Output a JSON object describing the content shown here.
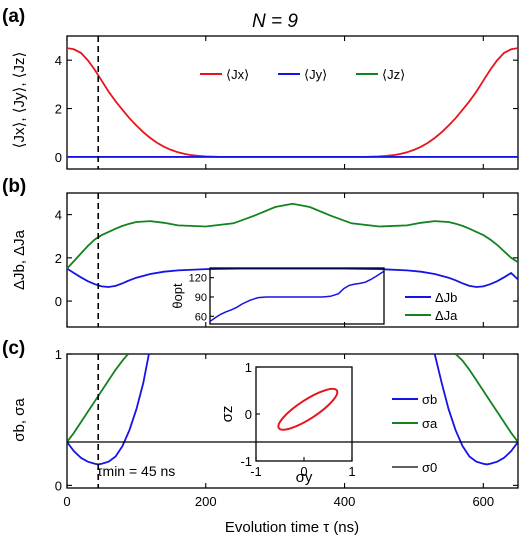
{
  "title": "N = 9",
  "colors": {
    "red": "#e8141b",
    "blue": "#1414e6",
    "green": "#14821e",
    "black": "#000000"
  },
  "chart_data": [
    {
      "panel": "(a)",
      "type": "line",
      "xlim": [
        0,
        650
      ],
      "ylim": [
        -0.5,
        5
      ],
      "yticks": [
        "0",
        "2",
        "4"
      ],
      "ylabel": "⟨Jx⟩, ⟨Jy⟩, ⟨Jz⟩",
      "vline_x": 45,
      "legend": [
        "⟨Jx⟩",
        "⟨Jy⟩",
        "⟨Jz⟩"
      ],
      "series": [
        {
          "name": "⟨Jx⟩",
          "color": "red",
          "x": [
            0,
            10,
            20,
            30,
            40,
            50,
            60,
            70,
            80,
            90,
            100,
            110,
            120,
            130,
            140,
            150,
            160,
            170,
            180,
            190,
            200,
            210,
            220,
            430,
            440,
            450,
            460,
            470,
            480,
            490,
            500,
            510,
            520,
            530,
            540,
            550,
            560,
            570,
            580,
            590,
            600,
            610,
            620,
            630,
            640,
            650
          ],
          "y": [
            4.5,
            4.45,
            4.3,
            4.0,
            3.6,
            3.15,
            2.7,
            2.3,
            1.95,
            1.6,
            1.3,
            1.02,
            0.78,
            0.58,
            0.42,
            0.29,
            0.19,
            0.12,
            0.07,
            0.04,
            0.02,
            0.01,
            0,
            0,
            0.01,
            0.02,
            0.04,
            0.07,
            0.12,
            0.19,
            0.29,
            0.42,
            0.58,
            0.78,
            1.02,
            1.3,
            1.6,
            1.95,
            2.3,
            2.7,
            3.15,
            3.6,
            4.0,
            4.3,
            4.45,
            4.5
          ]
        },
        {
          "name": "⟨Jy⟩",
          "color": "blue",
          "x": [
            0,
            650
          ],
          "y": [
            0,
            0
          ]
        },
        {
          "name": "⟨Jz⟩",
          "color": "green",
          "x": [
            0,
            650
          ],
          "y": [
            0,
            0
          ]
        }
      ]
    },
    {
      "panel": "(b)",
      "type": "line",
      "xlim": [
        0,
        650
      ],
      "ylim": [
        -1.2,
        5
      ],
      "yticks": [
        "0",
        "2",
        "4"
      ],
      "ylabel": "ΔJb, ΔJa",
      "vline_x": 45,
      "legend": [
        "ΔJb",
        "ΔJa"
      ],
      "series": [
        {
          "name": "ΔJb",
          "color": "blue",
          "x": [
            0,
            10,
            20,
            30,
            40,
            50,
            60,
            70,
            80,
            90,
            100,
            120,
            140,
            160,
            200,
            250,
            300,
            350,
            400,
            450,
            490,
            510,
            530,
            550,
            560,
            570,
            580,
            590,
            600,
            610,
            620,
            630,
            640,
            650
          ],
          "y": [
            1.5,
            1.3,
            1.1,
            0.92,
            0.78,
            0.68,
            0.65,
            0.7,
            0.82,
            0.96,
            1.08,
            1.25,
            1.36,
            1.42,
            1.48,
            1.5,
            1.5,
            1.5,
            1.5,
            1.48,
            1.42,
            1.36,
            1.25,
            1.08,
            0.96,
            0.82,
            0.7,
            0.65,
            0.68,
            0.78,
            0.92,
            1.1,
            1.3,
            1.0
          ]
        },
        {
          "name": "ΔJa",
          "color": "green",
          "x": [
            0,
            10,
            20,
            30,
            40,
            50,
            60,
            70,
            80,
            90,
            100,
            120,
            140,
            160,
            200,
            240,
            270,
            300,
            325,
            350,
            380,
            410,
            450,
            490,
            510,
            530,
            550,
            560,
            570,
            580,
            590,
            600,
            610,
            620,
            630,
            640,
            650
          ],
          "y": [
            1.5,
            1.85,
            2.2,
            2.55,
            2.85,
            3.05,
            3.2,
            3.35,
            3.48,
            3.58,
            3.66,
            3.7,
            3.62,
            3.5,
            3.45,
            3.6,
            3.95,
            4.35,
            4.5,
            4.35,
            3.95,
            3.6,
            3.45,
            3.5,
            3.62,
            3.7,
            3.66,
            3.58,
            3.48,
            3.35,
            3.2,
            3.05,
            2.85,
            2.6,
            2.3,
            2.0,
            1.8
          ]
        }
      ],
      "inset": {
        "ylabel": "θopt",
        "yticks": [
          "60",
          "90",
          "120"
        ],
        "ylim": [
          48,
          135
        ],
        "xlim": [
          0,
          650
        ],
        "series": [
          {
            "color": "blue",
            "x": [
              0,
              20,
              40,
              60,
              80,
              100,
              120,
              150,
              180,
              210,
              250,
              300,
              350,
              380,
              420,
              450,
              480,
              500,
              520,
              540,
              560,
              580,
              600,
              620,
              650
            ],
            "y": [
              52,
              58,
              63,
              67,
              70,
              74,
              79,
              85,
              89,
              90,
              90,
              90,
              90,
              90,
              90,
              91,
              95,
              103,
              108,
              110,
              111,
              113,
              117,
              122,
              130
            ]
          }
        ]
      }
    },
    {
      "panel": "(c)",
      "type": "line",
      "xlim": [
        0,
        650
      ],
      "ylim": [
        -0.02,
        1
      ],
      "xticks": [
        "0",
        "200",
        "400",
        "600"
      ],
      "yticks": [
        "0",
        "1"
      ],
      "xlabel": "Evolution time τ (ns)",
      "ylabel": "σb, σa",
      "vline_x": 45,
      "annotation": "τmin = 45 ns",
      "legend": [
        "σb",
        "σa",
        "σ0"
      ],
      "series": [
        {
          "name": "σb",
          "color": "blue",
          "x": [
            0,
            10,
            20,
            30,
            40,
            45,
            50,
            60,
            70,
            80,
            90,
            100,
            110,
            118,
            530,
            540,
            550,
            560,
            570,
            580,
            590,
            600,
            605,
            610,
            620,
            630,
            640,
            650
          ],
          "y": [
            0.33,
            0.26,
            0.21,
            0.18,
            0.165,
            0.16,
            0.165,
            0.18,
            0.22,
            0.3,
            0.42,
            0.58,
            0.78,
            1.0,
            1.0,
            0.78,
            0.58,
            0.42,
            0.3,
            0.22,
            0.18,
            0.165,
            0.16,
            0.165,
            0.18,
            0.21,
            0.26,
            0.33
          ]
        },
        {
          "name": "σa",
          "color": "green",
          "x": [
            0,
            10,
            20,
            30,
            40,
            50,
            60,
            70,
            80,
            88,
            560,
            570,
            580,
            590,
            600,
            610,
            620,
            630,
            640,
            650
          ],
          "y": [
            0.33,
            0.4,
            0.48,
            0.56,
            0.64,
            0.72,
            0.8,
            0.88,
            0.95,
            1.0,
            1.0,
            0.95,
            0.88,
            0.8,
            0.72,
            0.64,
            0.56,
            0.48,
            0.4,
            0.33
          ]
        },
        {
          "name": "σ0",
          "color": "black",
          "x": [
            0,
            650
          ],
          "y": [
            0.33,
            0.33
          ]
        }
      ],
      "inset": {
        "xlabel": "σy",
        "ylabel": "σz",
        "xticks": [
          "-1",
          "0",
          "1"
        ],
        "yticks": [
          "-1",
          "0",
          "1"
        ],
        "xlim": [
          -1,
          1
        ],
        "ylim": [
          -1,
          1
        ],
        "ellipse": {
          "cx": 0.08,
          "cy": 0.1,
          "rx": 0.72,
          "ry": 0.2,
          "angle_deg": 33,
          "color": "red"
        }
      }
    }
  ]
}
